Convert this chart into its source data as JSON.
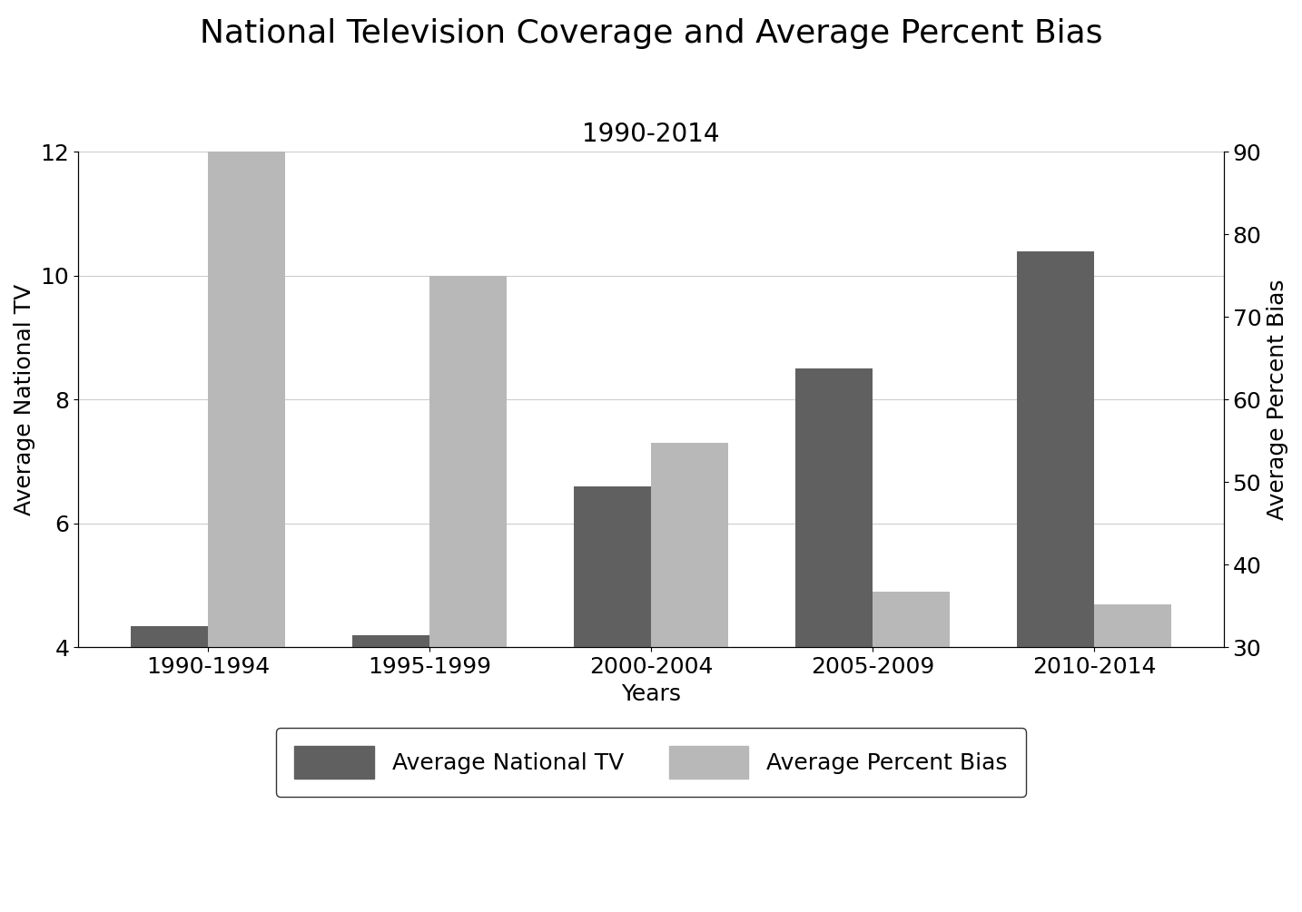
{
  "title_line1": "National Television Coverage and Average Percent Bias",
  "title_line2": "1990-2014",
  "categories": [
    "1990-1994",
    "1995-1999",
    "2000-2004",
    "2005-2009",
    "2010-2014"
  ],
  "avg_national_tv": [
    4.35,
    4.2,
    6.6,
    8.5,
    10.4
  ],
  "avg_percent_bias": [
    12.0,
    10.0,
    7.3,
    4.9,
    4.7
  ],
  "tv_color": "#606060",
  "bias_color": "#b8b8b8",
  "xlabel": "Years",
  "ylabel_left": "Average National TV",
  "ylabel_right": "Average Percent Bias",
  "ylim_left": [
    4,
    12
  ],
  "ylim_right": [
    30,
    90
  ],
  "yticks_left": [
    4,
    6,
    8,
    10,
    12
  ],
  "yticks_right": [
    30,
    40,
    50,
    60,
    70,
    80,
    90
  ],
  "legend_label_tv": "Average National TV",
  "legend_label_bias": "Average Percent Bias",
  "bar_width": 0.35,
  "grid_color": "#cccccc",
  "background_color": "#ffffff",
  "title_fontsize": 26,
  "subtitle_fontsize": 20,
  "axis_label_fontsize": 18,
  "tick_fontsize": 18,
  "legend_fontsize": 18
}
